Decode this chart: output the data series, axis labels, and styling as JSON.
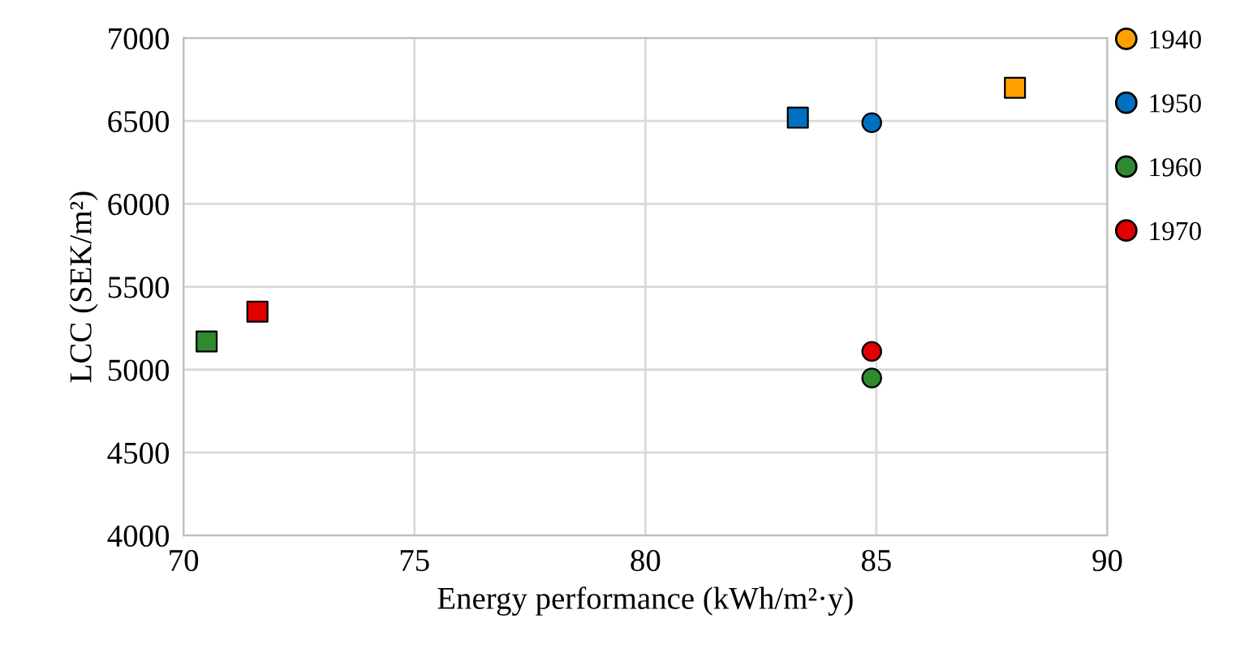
{
  "chart_data": {
    "type": "scatter",
    "xlabel": "Energy performance (kWh/m²·y)",
    "ylabel": "LCC (SEK/m²)",
    "xlim": [
      70,
      90
    ],
    "xticks": [
      70,
      75,
      80,
      85,
      90
    ],
    "ylim": [
      4000,
      7000
    ],
    "yticks": [
      4000,
      4500,
      5000,
      5500,
      6000,
      6500,
      7000
    ],
    "grid": true,
    "legend": "right",
    "series": [
      {
        "name": "1940",
        "color": "#ffa000",
        "marker": "circle"
      },
      {
        "name": "1950",
        "color": "#0070c0",
        "marker": "circle",
        "x": [
          84.9
        ],
        "values": [
          6490
        ]
      },
      {
        "name": "1960",
        "color": "#2f8a2f",
        "marker": "circle",
        "x": [
          84.9
        ],
        "values": [
          4950
        ]
      },
      {
        "name": "1970",
        "color": "#e00000",
        "marker": "circle",
        "x": [
          84.9
        ],
        "values": [
          5110
        ]
      },
      {
        "color": "#ffa000",
        "marker": "square",
        "x": [
          88.0
        ],
        "values": [
          6700
        ]
      },
      {
        "color": "#0070c0",
        "marker": "square",
        "x": [
          83.3
        ],
        "values": [
          6520
        ]
      },
      {
        "color": "#2f8a2f",
        "marker": "square",
        "x": [
          70.5
        ],
        "values": [
          5170
        ]
      },
      {
        "color": "#e00000",
        "marker": "square",
        "x": [
          71.6
        ],
        "values": [
          5350
        ]
      }
    ]
  }
}
